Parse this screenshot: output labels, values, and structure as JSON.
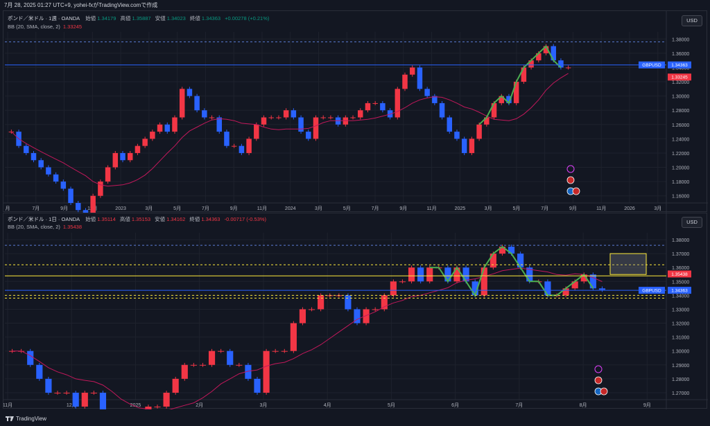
{
  "timestamp": "7月 28, 2025 01:27 UTC+9,  yohei-fxがTradingView.comで作成",
  "footer_brand": "TradingView",
  "colors": {
    "up": "#f23645",
    "down": "#2962ff",
    "bb_mid": "#c2185b",
    "green": "#4caf50",
    "price_line": "#2962ff",
    "yellow": "#ffeb3b",
    "grid": "#1e222d",
    "dash": "#5b7cd6"
  },
  "panes": [
    {
      "symbol": "ポンド／米ドル · 1週 · OANDA",
      "ohlc": {
        "o_label": "始値",
        "o": "1.34179",
        "h_label": "高値",
        "h": "1.35887",
        "l_label": "安値",
        "l": "1.34023",
        "c_label": "終値",
        "c": "1.34363",
        "chg": "+0.00278 (+0.21%)"
      },
      "bb_label": "BB (20, SMA, close, 2)",
      "bb_value": "1.33245",
      "currency": "USD",
      "symbol_tag": "GBPUSD",
      "price_tag": "1.34363",
      "bb_tag": "1.33245",
      "x_labels": [
        "月",
        "7月",
        "9月",
        "11月",
        "2023",
        "3月",
        "5月",
        "7月",
        "9月",
        "11月",
        "2024",
        "3月",
        "5月",
        "7月",
        "9月",
        "11月",
        "2025",
        "3月",
        "5月",
        "7月",
        "9月",
        "11月",
        "2026",
        "3月"
      ],
      "y_labels": [
        "1.38000",
        "1.36000",
        "1.34000",
        "1.32000",
        "1.30000",
        "1.28000",
        "1.26000",
        "1.24000",
        "1.22000",
        "1.20000",
        "1.18000",
        "1.16000"
      ]
    },
    {
      "symbol": "ポンド／米ドル · 1日 · OANDA",
      "ohlc": {
        "o_label": "始値",
        "o": "1.35114",
        "h_label": "高値",
        "h": "1.35153",
        "l_label": "安値",
        "l": "1.34162",
        "c_label": "終値",
        "c": "1.34363",
        "chg": "-0.00717 (-0.53%)"
      },
      "bb_label": "BB (20, SMA, close, 2)",
      "bb_value": "1.35438",
      "currency": "USD",
      "symbol_tag": "GBPUSD",
      "price_tag": "1.34363",
      "bb_tag": "1.35438",
      "x_labels": [
        "11月",
        "12月",
        "2025",
        "2月",
        "3月",
        "4月",
        "5月",
        "6月",
        "7月",
        "8月",
        "9月"
      ],
      "y_labels": [
        "1.38000",
        "1.37000",
        "1.36000",
        "1.35000",
        "1.34000",
        "1.33000",
        "1.32000",
        "1.31000",
        "1.30000",
        "1.29000",
        "1.28000",
        "1.27000"
      ]
    }
  ],
  "chart_data": [
    {
      "type": "candlestick",
      "title": "ポンド／米ドル · 1週 · OANDA",
      "ylim": [
        1.15,
        1.39
      ],
      "close_approx": [
        1.25,
        1.23,
        1.22,
        1.21,
        1.2,
        1.19,
        1.18,
        1.17,
        1.15,
        1.14,
        1.13,
        1.16,
        1.18,
        1.2,
        1.22,
        1.21,
        1.22,
        1.23,
        1.24,
        1.25,
        1.26,
        1.25,
        1.27,
        1.31,
        1.3,
        1.28,
        1.27,
        1.27,
        1.25,
        1.23,
        1.23,
        1.22,
        1.24,
        1.26,
        1.27,
        1.27,
        1.27,
        1.28,
        1.27,
        1.25,
        1.24,
        1.27,
        1.27,
        1.27,
        1.26,
        1.27,
        1.27,
        1.28,
        1.29,
        1.29,
        1.28,
        1.27,
        1.31,
        1.33,
        1.34,
        1.31,
        1.3,
        1.29,
        1.27,
        1.25,
        1.24,
        1.22,
        1.24,
        1.26,
        1.27,
        1.29,
        1.3,
        1.29,
        1.32,
        1.34,
        1.35,
        1.36,
        1.37,
        1.35,
        1.34,
        1.34
      ],
      "last_close": 1.34363,
      "bb_mid_last": 1.33245
    },
    {
      "type": "candlestick",
      "title": "ポンド／米ドル · 1日 · OANDA",
      "ylim": [
        1.265,
        1.385
      ],
      "close_approx": [
        1.3,
        1.3,
        1.29,
        1.28,
        1.27,
        1.27,
        1.27,
        1.26,
        1.27,
        1.27,
        1.25,
        1.25,
        1.24,
        1.25,
        1.25,
        1.26,
        1.26,
        1.27,
        1.28,
        1.29,
        1.29,
        1.29,
        1.3,
        1.3,
        1.29,
        1.29,
        1.28,
        1.27,
        1.3,
        1.3,
        1.3,
        1.32,
        1.33,
        1.33,
        1.34,
        1.34,
        1.34,
        1.33,
        1.32,
        1.33,
        1.33,
        1.34,
        1.35,
        1.35,
        1.36,
        1.35,
        1.36,
        1.36,
        1.35,
        1.36,
        1.35,
        1.34,
        1.36,
        1.37,
        1.375,
        1.37,
        1.36,
        1.35,
        1.35,
        1.34,
        1.34,
        1.345,
        1.35,
        1.355,
        1.345,
        1.344
      ],
      "last_close": 1.34363,
      "bb_mid_last": 1.35438
    }
  ]
}
